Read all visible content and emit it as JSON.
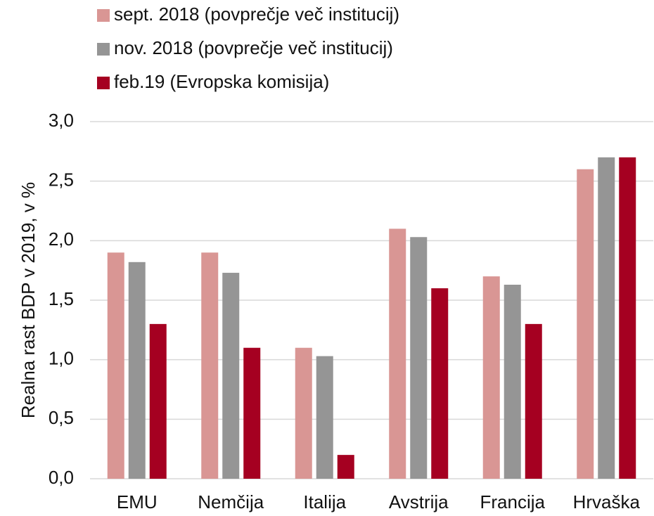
{
  "chart_data": {
    "type": "bar",
    "y_axis_label": "Realna rast BDP v 2019, v %",
    "categories": [
      "EMU",
      "Nemčija",
      "Italija",
      "Avstrija",
      "Francija",
      "Hrvaška"
    ],
    "series": [
      {
        "name": "sept. 2018 (povprečje več institucij)",
        "color": "#d99694",
        "values": [
          1.9,
          1.9,
          1.1,
          2.1,
          1.7,
          2.6
        ]
      },
      {
        "name": "nov. 2018 (povprečje več institucij)",
        "color": "#959595",
        "values": [
          1.82,
          1.73,
          1.03,
          2.03,
          1.63,
          2.7
        ]
      },
      {
        "name": "feb.19 (Evropska komisija)",
        "color": "#a50021",
        "values": [
          1.3,
          1.1,
          0.2,
          1.6,
          1.3,
          2.7
        ]
      }
    ],
    "ylim": [
      0,
      3
    ],
    "yticks": [
      {
        "value": 0,
        "label": "0,0"
      },
      {
        "value": 0.5,
        "label": "0,5"
      },
      {
        "value": 1,
        "label": "1,0"
      },
      {
        "value": 1.5,
        "label": "1,5"
      },
      {
        "value": 2,
        "label": "2,0"
      },
      {
        "value": 2.5,
        "label": "2,5"
      },
      {
        "value": 3,
        "label": "3,0"
      }
    ],
    "grid": true,
    "legend": "top-left"
  }
}
